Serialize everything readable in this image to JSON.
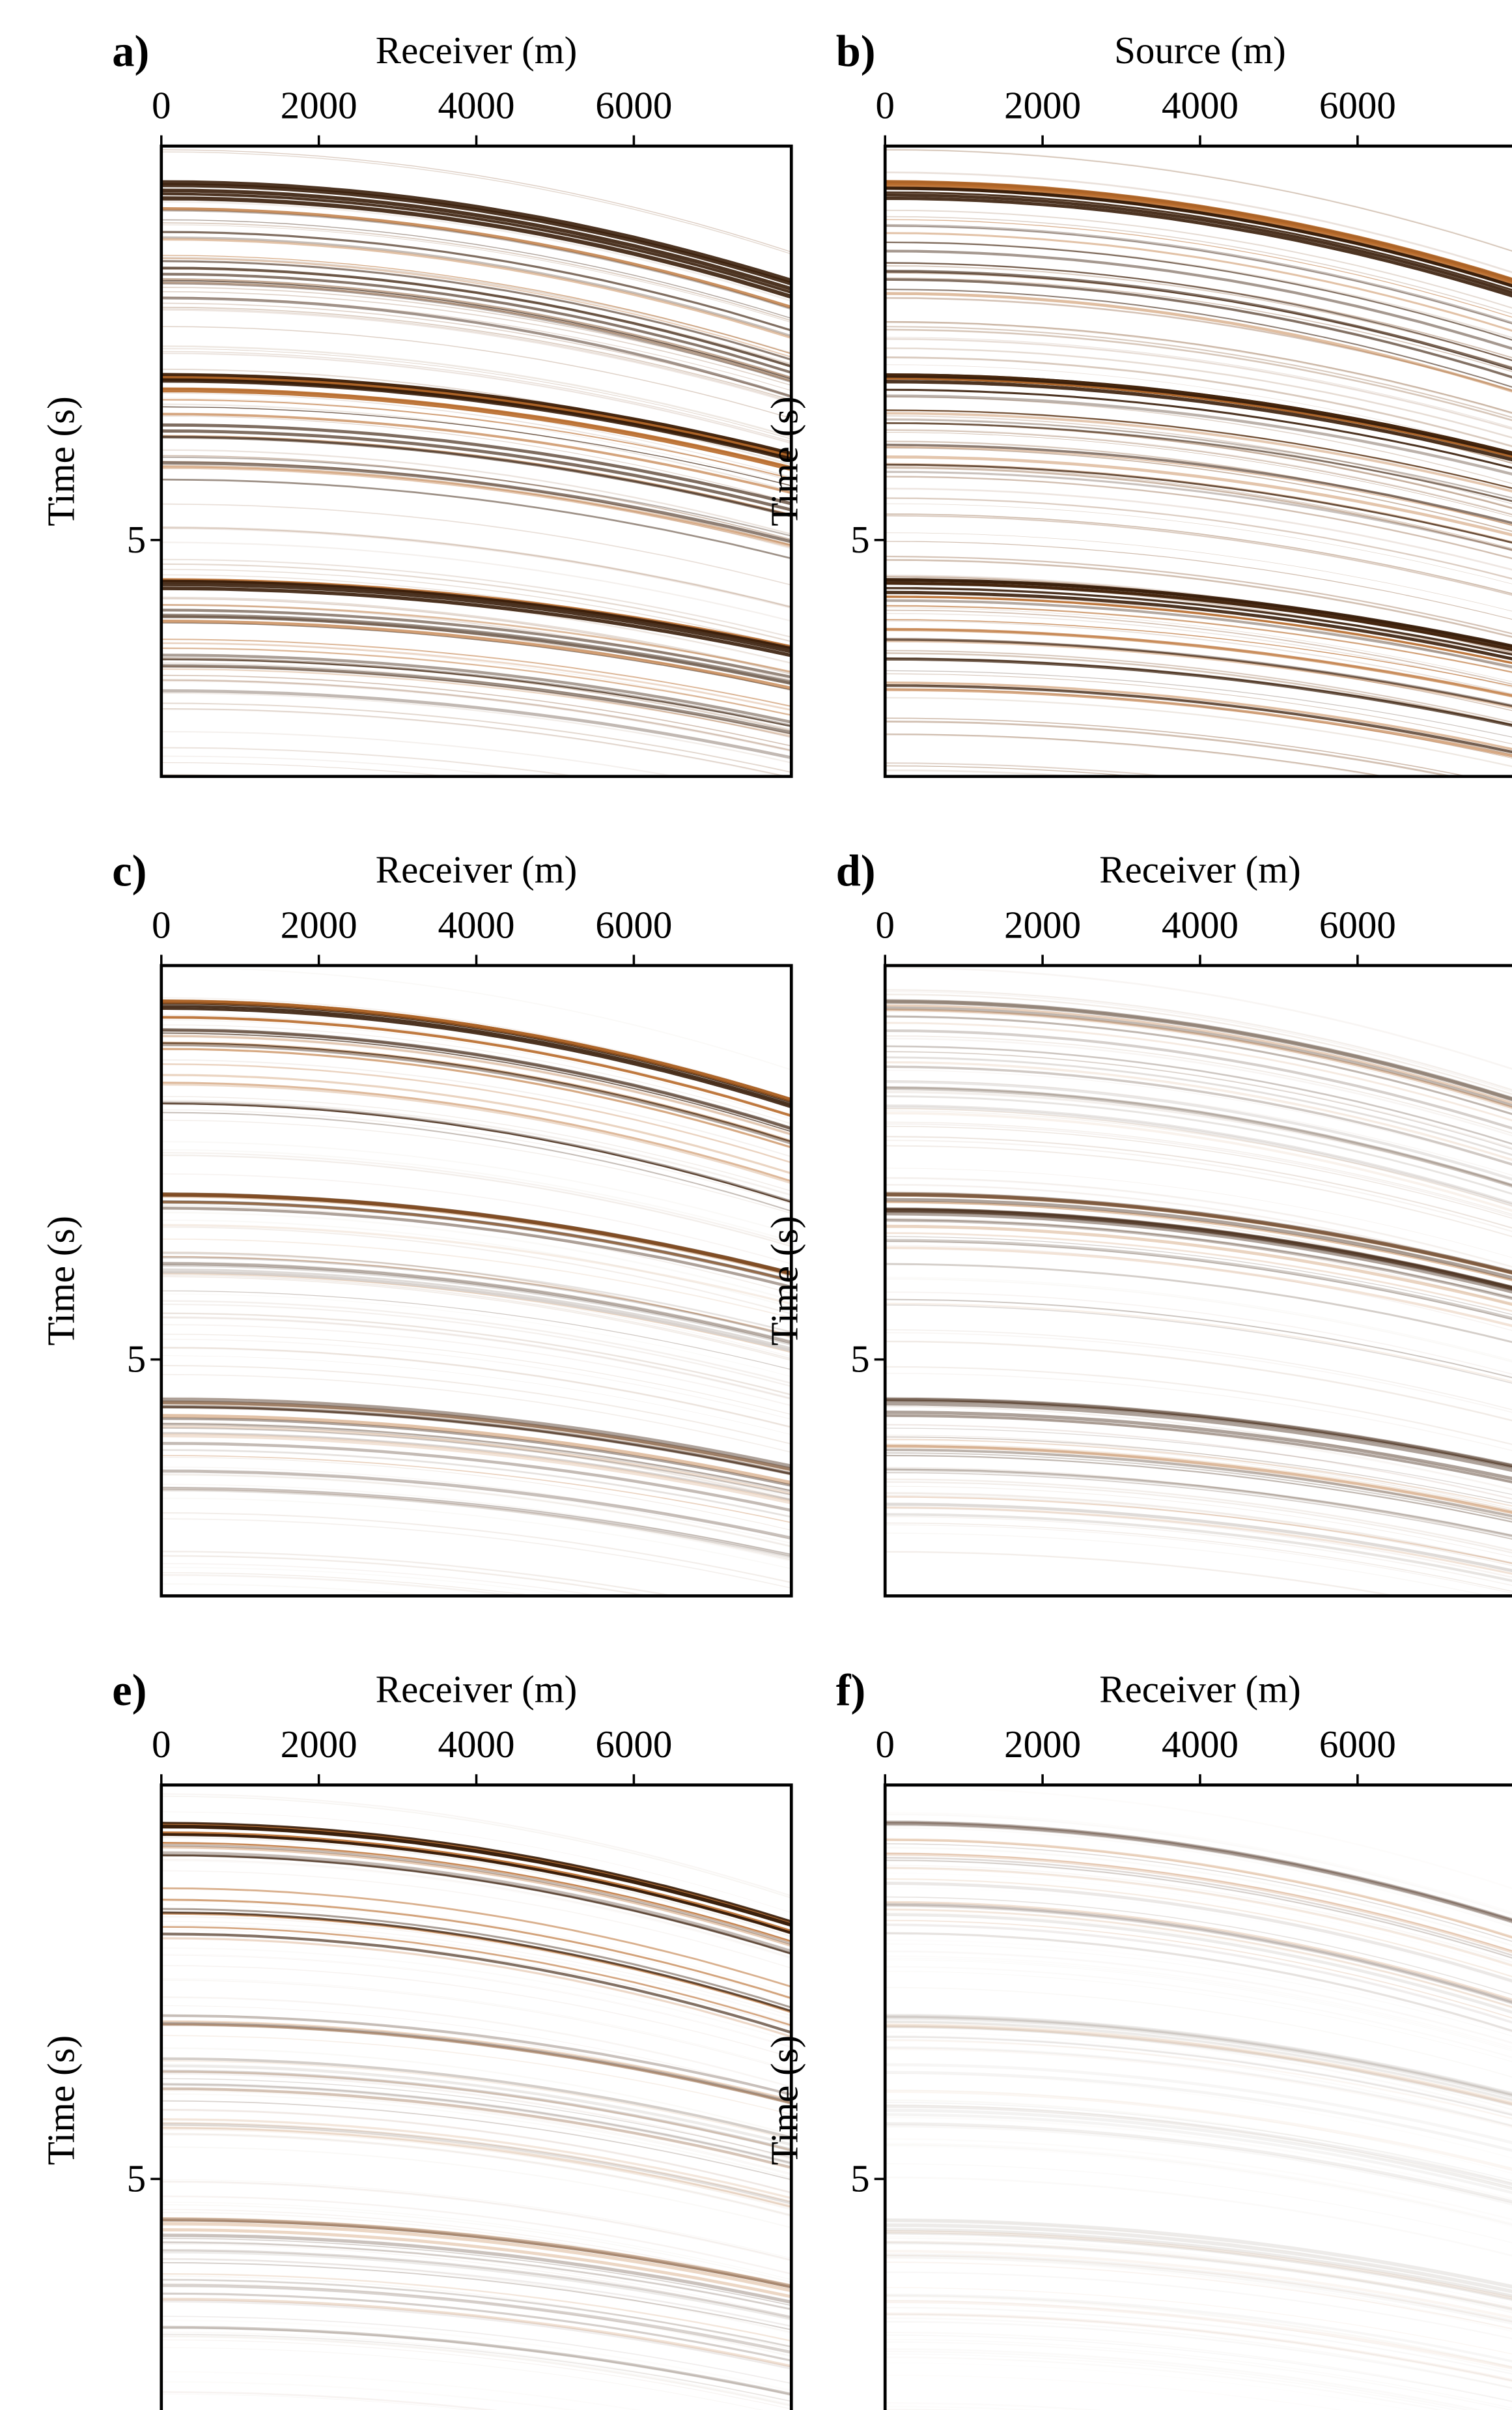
{
  "chart_data": [
    {
      "type": "image",
      "title": "a)",
      "x_label": "Receiver (m)",
      "y_label": "Time (s)",
      "xlim": [
        0,
        8000
      ],
      "xticks": [
        0,
        2000,
        4000,
        6000
      ],
      "ylim": [
        0,
        8
      ],
      "yticks": [
        5
      ],
      "y_inverted": true
    },
    {
      "type": "image",
      "title": "b)",
      "x_label": "Source (m)",
      "y_label": "Time (s)",
      "xlim": [
        0,
        8000
      ],
      "xticks": [
        0,
        2000,
        4000,
        6000
      ],
      "ylim": [
        0,
        8
      ],
      "yticks": [
        5
      ],
      "y_inverted": true
    },
    {
      "type": "image",
      "title": "c)",
      "x_label": "Receiver (m)",
      "y_label": "Time (s)",
      "xlim": [
        0,
        8000
      ],
      "xticks": [
        0,
        2000,
        4000,
        6000
      ],
      "ylim": [
        0,
        8
      ],
      "yticks": [
        5
      ],
      "y_inverted": true
    },
    {
      "type": "image",
      "title": "d)",
      "x_label": "Receiver (m)",
      "y_label": "Time (s)",
      "xlim": [
        0,
        8000
      ],
      "xticks": [
        0,
        2000,
        4000,
        6000
      ],
      "ylim": [
        0,
        8
      ],
      "yticks": [
        5
      ],
      "y_inverted": true
    },
    {
      "type": "image",
      "title": "e)",
      "x_label": "Receiver (m)",
      "y_label": "Time (s)",
      "xlim": [
        0,
        8000
      ],
      "xticks": [
        0,
        2000,
        4000,
        6000
      ],
      "ylim": [
        0,
        8
      ],
      "yticks": [
        5
      ],
      "y_inverted": true
    },
    {
      "type": "image",
      "title": "f)",
      "x_label": "Receiver (m)",
      "y_label": "Time (s)",
      "xlim": [
        0,
        8000
      ],
      "xticks": [
        0,
        2000,
        4000,
        6000
      ],
      "ylim": [
        0,
        8
      ],
      "yticks": [
        5
      ],
      "y_inverted": true
    }
  ]
}
